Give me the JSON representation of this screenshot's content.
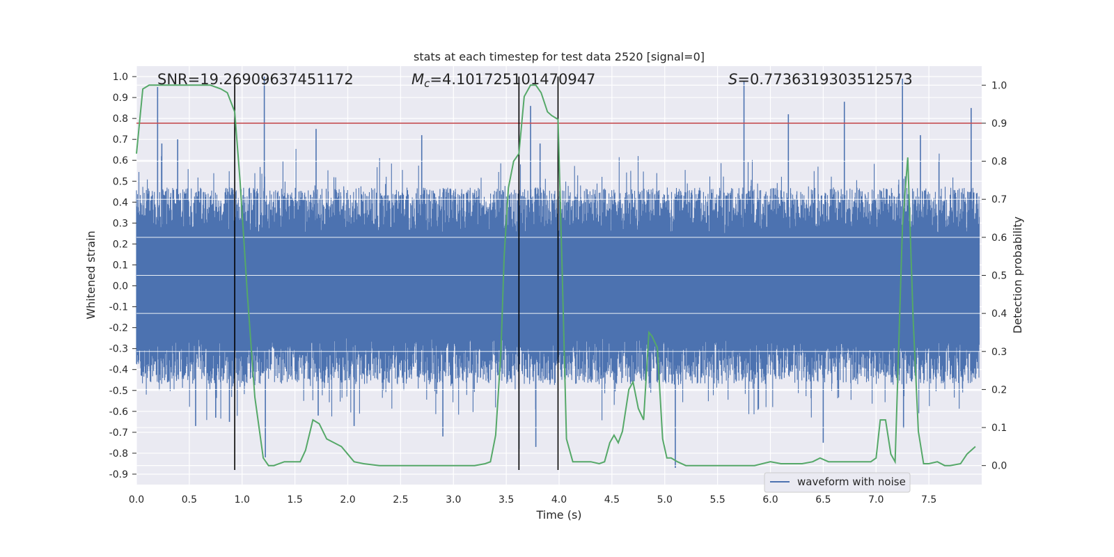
{
  "chart_data": {
    "type": "line",
    "title": "stats at each timestep for test data 2520 [signal=0]",
    "xlabel": "Time (s)",
    "ylabel": "Whitened strain",
    "y2label": "Detection probability",
    "xlim": [
      0.0,
      8.0
    ],
    "ylim": [
      -0.95,
      1.05
    ],
    "y2lim": [
      -0.05,
      1.05
    ],
    "x_ticks": [
      "0.0",
      "0.5",
      "1.0",
      "1.5",
      "2.0",
      "2.5",
      "3.0",
      "3.5",
      "4.0",
      "4.5",
      "5.0",
      "5.5",
      "6.0",
      "6.5",
      "7.0",
      "7.5"
    ],
    "y_ticks": [
      "1.0",
      "0.9",
      "0.8",
      "0.7",
      "0.6",
      "0.5",
      "0.4",
      "0.3",
      "0.2",
      "0.1",
      "0.0",
      "-0.1",
      "-0.2",
      "-0.3",
      "-0.4",
      "-0.5",
      "-0.6",
      "-0.7",
      "-0.8",
      "-0.9"
    ],
    "y2_ticks": [
      "1.0",
      "0.9",
      "0.8",
      "0.7",
      "0.6",
      "0.5",
      "0.4",
      "0.3",
      "0.2",
      "0.1",
      "0.0"
    ],
    "grid": true,
    "legend": {
      "position": "lower-right",
      "entries": [
        "waveform with noise"
      ]
    },
    "annotations": {
      "snr_text": "SNR=19.26909637451172",
      "mc_symbol": "M",
      "mc_sub": "c",
      "mc_value": "=4.101725101470947",
      "s_symbol": "S",
      "s_value": "=0.7736319303512573"
    },
    "threshold": {
      "y2": 0.9,
      "color": "#c44e52"
    },
    "vertical_lines": [
      0.93,
      3.62,
      3.99
    ],
    "series": [
      {
        "name": "waveform with noise",
        "color": "#4c72b0",
        "description": "whitened strain samples, visual envelope approx +/-0.45 with spikes",
        "spikes": [
          {
            "x": 0.2,
            "y": 0.95
          },
          {
            "x": 0.24,
            "y": 0.68
          },
          {
            "x": 0.39,
            "y": 0.7
          },
          {
            "x": 0.56,
            "y": -0.67
          },
          {
            "x": 0.75,
            "y": -0.63
          },
          {
            "x": 0.88,
            "y": -0.65
          },
          {
            "x": 1.21,
            "y": 1.0
          },
          {
            "x": 1.22,
            "y": -0.82
          },
          {
            "x": 1.7,
            "y": 0.75
          },
          {
            "x": 1.72,
            "y": -0.62
          },
          {
            "x": 2.06,
            "y": -0.67
          },
          {
            "x": 2.7,
            "y": 0.72
          },
          {
            "x": 2.9,
            "y": -0.72
          },
          {
            "x": 3.62,
            "y": -0.78
          },
          {
            "x": 3.73,
            "y": 0.86
          },
          {
            "x": 3.78,
            "y": -0.77
          },
          {
            "x": 3.82,
            "y": 0.68
          },
          {
            "x": 5.1,
            "y": -0.87
          },
          {
            "x": 5.75,
            "y": 0.98
          },
          {
            "x": 6.17,
            "y": 0.82
          },
          {
            "x": 6.5,
            "y": -0.75
          },
          {
            "x": 6.7,
            "y": 0.88
          },
          {
            "x": 7.25,
            "y": 0.99
          },
          {
            "x": 7.26,
            "y": -0.68
          },
          {
            "x": 7.42,
            "y": 0.72
          },
          {
            "x": 7.9,
            "y": 0.85
          }
        ]
      },
      {
        "name": "",
        "color": "#55a868",
        "axis": "y2",
        "x": [
          0.0,
          0.06,
          0.12,
          0.2,
          0.3,
          0.4,
          0.5,
          0.6,
          0.7,
          0.8,
          0.86,
          0.93,
          0.98,
          1.05,
          1.12,
          1.2,
          1.25,
          1.3,
          1.4,
          1.5,
          1.55,
          1.6,
          1.67,
          1.73,
          1.8,
          1.87,
          1.94,
          2.0,
          2.06,
          2.15,
          2.3,
          2.45,
          2.6,
          2.8,
          3.0,
          3.1,
          3.2,
          3.3,
          3.35,
          3.4,
          3.45,
          3.48,
          3.52,
          3.57,
          3.62,
          3.67,
          3.73,
          3.78,
          3.83,
          3.89,
          3.93,
          3.99,
          4.03,
          4.07,
          4.13,
          4.2,
          4.3,
          4.38,
          4.43,
          4.48,
          4.52,
          4.56,
          4.6,
          4.66,
          4.7,
          4.75,
          4.8,
          4.85,
          4.88,
          4.93,
          4.98,
          5.02,
          5.06,
          5.12,
          5.2,
          5.3,
          5.5,
          5.7,
          5.85,
          6.0,
          6.1,
          6.2,
          6.3,
          6.4,
          6.47,
          6.55,
          6.65,
          6.75,
          6.85,
          6.95,
          7.0,
          7.04,
          7.09,
          7.14,
          7.18,
          7.25,
          7.3,
          7.35,
          7.4,
          7.45,
          7.5,
          7.58,
          7.65,
          7.7,
          7.8,
          7.86,
          7.94
        ],
        "y": [
          0.82,
          0.99,
          1.0,
          1.0,
          1.0,
          1.0,
          1.0,
          1.0,
          1.0,
          0.99,
          0.98,
          0.93,
          0.75,
          0.45,
          0.18,
          0.02,
          0.0,
          0.0,
          0.01,
          0.01,
          0.01,
          0.04,
          0.12,
          0.11,
          0.07,
          0.06,
          0.05,
          0.03,
          0.01,
          0.005,
          0.0,
          0.0,
          0.0,
          0.0,
          0.0,
          0.0,
          0.0,
          0.005,
          0.01,
          0.08,
          0.3,
          0.55,
          0.73,
          0.8,
          0.82,
          0.97,
          1.0,
          1.0,
          0.98,
          0.93,
          0.92,
          0.91,
          0.5,
          0.07,
          0.01,
          0.01,
          0.01,
          0.005,
          0.01,
          0.06,
          0.08,
          0.06,
          0.09,
          0.2,
          0.22,
          0.15,
          0.12,
          0.35,
          0.34,
          0.31,
          0.07,
          0.02,
          0.02,
          0.01,
          0.0,
          0.0,
          0.0,
          0.0,
          0.0,
          0.01,
          0.005,
          0.005,
          0.005,
          0.01,
          0.02,
          0.01,
          0.01,
          0.01,
          0.01,
          0.01,
          0.02,
          0.12,
          0.12,
          0.03,
          0.01,
          0.63,
          0.81,
          0.39,
          0.09,
          0.005,
          0.005,
          0.01,
          0.0,
          0.0,
          0.005,
          0.03,
          0.05
        ]
      }
    ]
  }
}
